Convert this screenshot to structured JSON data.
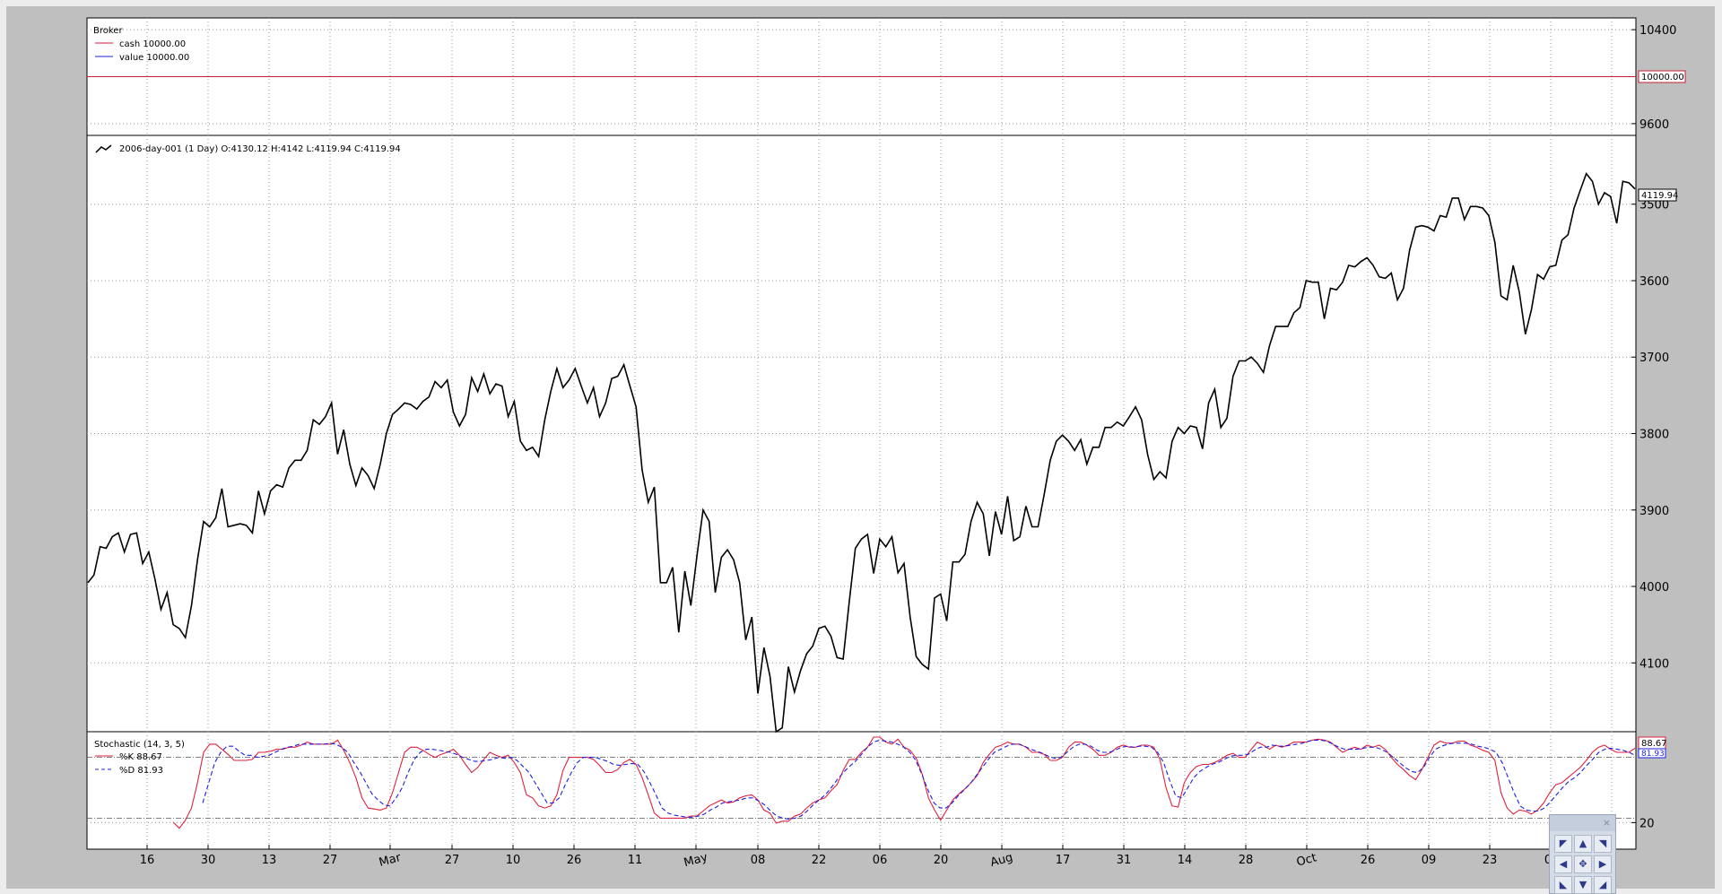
{
  "colors": {
    "price_line": "#000000",
    "cash_line": "#c71f37",
    "value_line": "#1f1fd9",
    "percent_k": "#e0213f",
    "percent_d": "#1f1fe6",
    "figure_background": "#bfbfbf",
    "plot_background": "#ffffff"
  },
  "broker_panel": {
    "title": "Broker",
    "legend": [
      {
        "label": "cash 10000.00",
        "color": "#c71f37",
        "style": "solid"
      },
      {
        "label": "value 10000.00",
        "color": "#1f1fd9",
        "style": "solid"
      }
    ],
    "y_ticks": [
      "10400",
      "9600"
    ],
    "last_value_tag": "10000.00"
  },
  "price_panel": {
    "legend": "2006-day-001 (1 Day) O:4130.12 H:4142 L:4119.94 C:4119.94",
    "y_ticks": [
      "4100",
      "4000",
      "3900",
      "3800",
      "3700",
      "3600",
      "3500"
    ],
    "last_value_tag": "4119.94"
  },
  "stochastic_panel": {
    "title": "Stochastic (14, 3, 5)",
    "legend": [
      {
        "label": "%K 88.67",
        "color": "#e0213f",
        "style": "solid"
      },
      {
        "label": "%D 81.93",
        "color": "#1f1fe6",
        "style": "dashed"
      }
    ],
    "y_ticks": [
      "20"
    ],
    "k_tag": "88.67",
    "d_tag": "81.93"
  },
  "x_axis": {
    "tick_labels": [
      "16",
      "30",
      "13",
      "27",
      "Mar",
      "27",
      "10",
      "26",
      "11",
      "May",
      "08",
      "22",
      "06",
      "20",
      "Aug",
      "17",
      "31",
      "14",
      "28",
      "Oct",
      "26",
      "09",
      "23",
      "0",
      "c"
    ],
    "rotated_labels": [
      "Mar",
      "May",
      "Aug",
      "Oct"
    ]
  },
  "toolbar": {
    "buttons": [
      {
        "name": "pan-up-left-button",
        "icon": "arrow-up-left-icon",
        "glyph": "◤"
      },
      {
        "name": "pan-up-button",
        "icon": "arrow-up-icon",
        "glyph": "▲"
      },
      {
        "name": "pan-up-right-button",
        "icon": "arrow-up-right-icon",
        "glyph": "◥"
      },
      {
        "name": "pan-left-button",
        "icon": "arrow-left-icon",
        "glyph": "◀"
      },
      {
        "name": "pan-center-button",
        "icon": "move-icon",
        "glyph": "✥"
      },
      {
        "name": "pan-right-button",
        "icon": "arrow-right-icon",
        "glyph": "▶"
      },
      {
        "name": "pan-down-left-button",
        "icon": "arrow-down-left-icon",
        "glyph": "◣"
      },
      {
        "name": "pan-down-button",
        "icon": "arrow-down-icon",
        "glyph": "▼"
      },
      {
        "name": "pan-down-right-button",
        "icon": "arrow-down-right-icon",
        "glyph": "◢"
      }
    ]
  },
  "chart_data": [
    {
      "type": "line",
      "title": "Broker",
      "y_ticks": [
        10400,
        9600
      ],
      "series": [
        {
          "name": "cash",
          "values": [
            10000,
            10000
          ]
        },
        {
          "name": "value",
          "values": [
            10000,
            10000
          ]
        }
      ],
      "ylim": [
        9500,
        10500
      ]
    },
    {
      "type": "line",
      "title": "2006-day-001 (1 Day)",
      "ylim": [
        3410,
        4190
      ],
      "y_ticks": [
        3500,
        3600,
        3700,
        3800,
        3900,
        4000,
        4100
      ],
      "series": [
        {
          "name": "2006-day-001",
          "values": [
            3605,
            3615,
            3652,
            3650,
            3665,
            3670,
            3645,
            3668,
            3670,
            3630,
            3645,
            3610,
            3570,
            3592,
            3550,
            3545,
            3533,
            3575,
            3635,
            3685,
            3678,
            3690,
            3728,
            3678,
            3680,
            3682,
            3680,
            3670,
            3725,
            3695,
            3725,
            3733,
            3730,
            3755,
            3765,
            3765,
            3778,
            3818,
            3812,
            3822,
            3840,
            3773,
            3805,
            3760,
            3732,
            3755,
            3745,
            3728,
            3760,
            3800,
            3825,
            3832,
            3840,
            3838,
            3832,
            3842,
            3848,
            3868,
            3860,
            3870,
            3828,
            3810,
            3825,
            3873,
            3855,
            3878,
            3852,
            3865,
            3862,
            3822,
            3842,
            3790,
            3778,
            3782,
            3770,
            3818,
            3855,
            3885,
            3860,
            3870,
            3885,
            3862,
            3840,
            3860,
            3822,
            3840,
            3872,
            3875,
            3890,
            3862,
            3835,
            3752,
            3710,
            3730,
            3605,
            3605,
            3625,
            3540,
            3620,
            3575,
            3640,
            3700,
            3685,
            3592,
            3638,
            3648,
            3635,
            3605,
            3530,
            3560,
            3460,
            3520,
            3482,
            3410,
            3415,
            3495,
            3462,
            3490,
            3512,
            3522,
            3545,
            3548,
            3535,
            3507,
            3505,
            3580,
            3650,
            3662,
            3668,
            3617,
            3662,
            3652,
            3665,
            3618,
            3630,
            3560,
            3508,
            3498,
            3492,
            3585,
            3590,
            3555,
            3632,
            3632,
            3642,
            3685,
            3710,
            3695,
            3640,
            3698,
            3668,
            3718,
            3660,
            3665,
            3705,
            3678,
            3678,
            3720,
            3765,
            3790,
            3798,
            3790,
            3778,
            3792,
            3760,
            3782,
            3782,
            3808,
            3808,
            3815,
            3810,
            3822,
            3835,
            3818,
            3772,
            3740,
            3750,
            3742,
            3790,
            3808,
            3800,
            3810,
            3808,
            3780,
            3840,
            3858,
            3808,
            3820,
            3875,
            3895,
            3895,
            3900,
            3892,
            3880,
            3915,
            3940,
            3940,
            3940,
            3958,
            3965,
            4000,
            3998,
            3998,
            3950,
            3990,
            3988,
            3998,
            4020,
            4018,
            4025,
            4030,
            4020,
            4005,
            4003,
            4010,
            3975,
            3990,
            4040,
            4070,
            4072,
            4070,
            4065,
            4085,
            4083,
            4108,
            4108,
            4080,
            4097,
            4097,
            4095,
            4085,
            4050,
            3980,
            3975,
            4020,
            3985,
            3930,
            3962,
            4008,
            4002,
            4018,
            4020,
            4053,
            4060,
            4095,
            4118,
            4140,
            4130,
            4100,
            4115,
            4110,
            4075,
            4130,
            4128,
            4120
          ]
        }
      ]
    },
    {
      "type": "line",
      "title": "Stochastic (14, 3, 5)",
      "ylim": [
        0,
        100
      ],
      "y_ticks": [
        20
      ],
      "reference_lines": [
        80,
        20
      ],
      "series": [
        {
          "name": "%K",
          "values": [
            null,
            null,
            null,
            null,
            null,
            null,
            null,
            null,
            null,
            null,
            null,
            null,
            null,
            null,
            16,
            10,
            18,
            30,
            55,
            85,
            93,
            93,
            88,
            83,
            77,
            77,
            77,
            78,
            85,
            85,
            86,
            88,
            88,
            90,
            90,
            92,
            95,
            93,
            93,
            93,
            93,
            97,
            87,
            75,
            60,
            40,
            30,
            29,
            28,
            30,
            45,
            65,
            85,
            90,
            90,
            87,
            83,
            80,
            83,
            85,
            88,
            82,
            73,
            65,
            70,
            78,
            85,
            82,
            80,
            82,
            75,
            65,
            43,
            40,
            32,
            30,
            32,
            43,
            67,
            80,
            80,
            80,
            80,
            78,
            72,
            65,
            65,
            68,
            75,
            78,
            73,
            60,
            43,
            25,
            20,
            20,
            20,
            20,
            20,
            22,
            22,
            27,
            32,
            35,
            38,
            35,
            36,
            40,
            42,
            43,
            38,
            28,
            25,
            15,
            17,
            17,
            22,
            24,
            30,
            35,
            38,
            40,
            47,
            53,
            67,
            78,
            78,
            85,
            90,
            100,
            100,
            95,
            93,
            98,
            90,
            87,
            79,
            63,
            40,
            28,
            18,
            28,
            38,
            44,
            49,
            55,
            62,
            75,
            83,
            90,
            92,
            95,
            93,
            93,
            90,
            85,
            85,
            83,
            77,
            77,
            80,
            90,
            95,
            95,
            92,
            88,
            82,
            82,
            85,
            90,
            92,
            90,
            90,
            92,
            92,
            90,
            78,
            50,
            32,
            31,
            55,
            65,
            71,
            73,
            73,
            75,
            78,
            82,
            84,
            80,
            80,
            88,
            95,
            92,
            88,
            92,
            90,
            92,
            95,
            95,
            95,
            97,
            98,
            97,
            95,
            90,
            85,
            88,
            90,
            88,
            92,
            90,
            92,
            88,
            80,
            73,
            68,
            62,
            58,
            68,
            80,
            92,
            96,
            94,
            94,
            96,
            96,
            92,
            90,
            87,
            85,
            77,
            45,
            30,
            24,
            28,
            27,
            24,
            28,
            35,
            45,
            53,
            55,
            60,
            65,
            70,
            77,
            85,
            90,
            92,
            88,
            85,
            85,
            85,
            89
          ]
        },
        {
          "name": "%D",
          "values": [
            null,
            null,
            null,
            null,
            null,
            null,
            null,
            null,
            null,
            null,
            null,
            null,
            null,
            null,
            null,
            null,
            null,
            null,
            null,
            35,
            55,
            75,
            85,
            91,
            91,
            86,
            82,
            82,
            80,
            81,
            82,
            85,
            88,
            90,
            91,
            93,
            93,
            93,
            93,
            93,
            94,
            93,
            90,
            85,
            75,
            66,
            55,
            44,
            38,
            33,
            32,
            40,
            50,
            65,
            78,
            85,
            88,
            88,
            87,
            86,
            85,
            83,
            80,
            78,
            76,
            76,
            77,
            78,
            80,
            79,
            80,
            77,
            71,
            65,
            55,
            45,
            35,
            35,
            40,
            53,
            65,
            75,
            80,
            80,
            80,
            78,
            76,
            73,
            72,
            73,
            74,
            73,
            66,
            55,
            43,
            30,
            25,
            23,
            22,
            21,
            21,
            22,
            24,
            28,
            31,
            35,
            36,
            37,
            38,
            40,
            40,
            37,
            33,
            27,
            22,
            20,
            19,
            20,
            22,
            27,
            33,
            38,
            43,
            50,
            58,
            65,
            71,
            76,
            83,
            90,
            95,
            97,
            96,
            95,
            93,
            90,
            85,
            77,
            63,
            48,
            35,
            30,
            30,
            35,
            42,
            48,
            54,
            62,
            70,
            78,
            85,
            88,
            91,
            93,
            93,
            91,
            88,
            86,
            84,
            81,
            79,
            80,
            85,
            90,
            93,
            93,
            91,
            87,
            85,
            85,
            87,
            90,
            91,
            90,
            91,
            91,
            90,
            85,
            75,
            57,
            42,
            40,
            50,
            60,
            66,
            70,
            73,
            75,
            78,
            81,
            82,
            82,
            83,
            87,
            90,
            90,
            92,
            91,
            91,
            92,
            93,
            94,
            96,
            97,
            97,
            96,
            93,
            90,
            88,
            88,
            88,
            89,
            90,
            90,
            88,
            85,
            80,
            75,
            70,
            66,
            65,
            70,
            80,
            88,
            91,
            93,
            94,
            94,
            94,
            93,
            91,
            90,
            88,
            85,
            75,
            60,
            45,
            32,
            28,
            27,
            27,
            30,
            36,
            43,
            50,
            56,
            60,
            65,
            72,
            78,
            85,
            88,
            89,
            88,
            87,
            85,
            82
          ]
        }
      ]
    }
  ]
}
